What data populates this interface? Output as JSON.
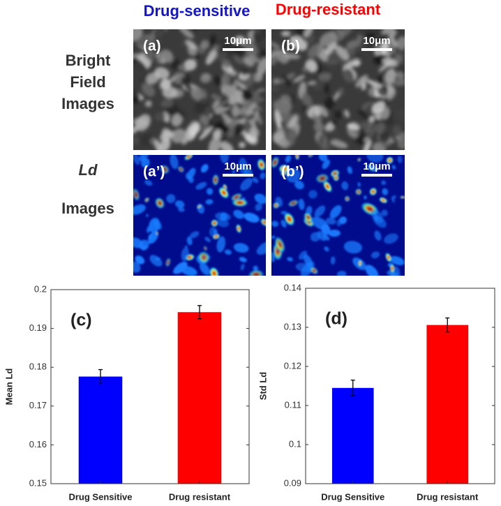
{
  "figure": {
    "columns": [
      {
        "text": "Drug-sensitive",
        "color": "#1414c8"
      },
      {
        "text": "Drug-resistant",
        "color": "#ff0000"
      }
    ],
    "rows": [
      {
        "lines": [
          "Bright",
          "Field",
          "Images"
        ]
      },
      {
        "lines": [
          "Ld",
          "Images"
        ]
      }
    ],
    "panels": [
      "(a)",
      "(b)",
      "(a’)",
      "(b’)"
    ],
    "scale_bar": "10μm"
  },
  "chart_data": [
    {
      "type": "bar",
      "annotation": "(c)",
      "ylabel": "Mean Ld",
      "categories": [
        "Drug Sensitive",
        "Drug resistant"
      ],
      "values": [
        0.1776,
        0.1942
      ],
      "errors": [
        0.0018,
        0.0017
      ],
      "colors": [
        "#0000ff",
        "#ff0000"
      ],
      "ylim": [
        0.15,
        0.2
      ],
      "yticks": [
        0.15,
        0.16,
        0.17,
        0.18,
        0.19,
        0.2
      ]
    },
    {
      "type": "bar",
      "annotation": "(d)",
      "ylabel": "Std Ld",
      "categories": [
        "Drug Sensitive",
        "Drug resistant"
      ],
      "values": [
        0.1145,
        0.1306
      ],
      "errors": [
        0.002,
        0.0018
      ],
      "colors": [
        "#0000ff",
        "#ff0000"
      ],
      "ylim": [
        0.09,
        0.14
      ],
      "yticks": [
        0.09,
        0.1,
        0.11,
        0.12,
        0.13,
        0.14
      ]
    }
  ]
}
